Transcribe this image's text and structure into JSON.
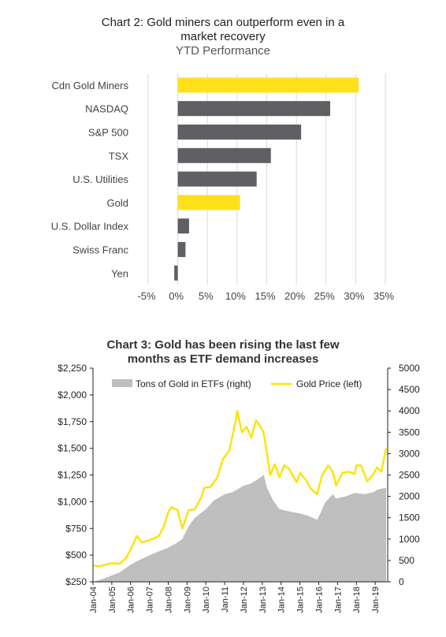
{
  "chart_data": [
    {
      "type": "bar",
      "orientation": "horizontal",
      "title": [
        "Chart 2: Gold miners can outperform even in a",
        "market recovery"
      ],
      "subtitle": "YTD Performance",
      "categories": [
        "Cdn Gold Miners",
        "NASDAQ",
        "S&P 500",
        "TSX",
        "U.S. Utilities",
        "Gold",
        "U.S. Dollar Index",
        "Swiss Franc",
        "Yen"
      ],
      "values": [
        30.5,
        25.7,
        20.8,
        15.7,
        13.3,
        10.5,
        1.9,
        1.3,
        -0.6
      ],
      "highlight": [
        true,
        false,
        false,
        false,
        false,
        true,
        false,
        false,
        false
      ],
      "xlim": [
        -5,
        35
      ],
      "xticks": [
        "-5%",
        "0%",
        "5%",
        "10%",
        "15%",
        "20%",
        "25%",
        "30%",
        "35%"
      ],
      "xtick_values": [
        -5,
        0,
        5,
        10,
        15,
        20,
        25,
        30,
        35
      ],
      "colors": {
        "highlight": "#FFE01B",
        "default": "#5F5F64"
      },
      "grid": true
    },
    {
      "type": "area",
      "title": [
        "Chart 3: Gold has been rising the last few",
        "months as ETF demand increases"
      ],
      "legend": {
        "placement": "top",
        "items": [
          "Tons of Gold in ETFs (right)",
          "Gold Price (left)"
        ]
      },
      "series": [
        {
          "name": "Gold Price (left)",
          "type": "line",
          "axis": "left",
          "color": "#FFE200",
          "x": [
            "2004-01",
            "2004-05",
            "2004-09",
            "2005-01",
            "2005-06",
            "2005-10",
            "2006-01",
            "2006-05",
            "2006-08",
            "2006-11",
            "2007-03",
            "2007-07",
            "2007-10",
            "2008-01",
            "2008-03",
            "2008-07",
            "2008-10",
            "2009-02",
            "2009-06",
            "2009-10",
            "2009-12",
            "2010-04",
            "2010-08",
            "2010-12",
            "2011-04",
            "2011-08",
            "2011-09",
            "2011-12",
            "2012-03",
            "2012-06",
            "2012-09",
            "2012-12",
            "2013-02",
            "2013-04",
            "2013-06",
            "2013-09",
            "2013-12",
            "2014-03",
            "2014-06",
            "2014-11",
            "2015-01",
            "2015-05",
            "2015-08",
            "2015-12",
            "2016-03",
            "2016-07",
            "2016-10",
            "2016-12",
            "2017-04",
            "2017-08",
            "2017-12",
            "2018-01",
            "2018-04",
            "2018-08",
            "2018-12",
            "2019-02",
            "2019-05",
            "2019-08"
          ],
          "values": [
            405,
            395,
            410,
            425,
            420,
            470,
            550,
            680,
            620,
            630,
            650,
            680,
            760,
            900,
            950,
            920,
            750,
            920,
            930,
            1040,
            1130,
            1140,
            1220,
            1400,
            1480,
            1750,
            1850,
            1650,
            1700,
            1600,
            1760,
            1700,
            1640,
            1450,
            1250,
            1350,
            1230,
            1340,
            1310,
            1180,
            1270,
            1200,
            1120,
            1070,
            1240,
            1340,
            1280,
            1150,
            1270,
            1280,
            1260,
            1340,
            1340,
            1190,
            1260,
            1320,
            1280,
            1500
          ]
        },
        {
          "name": "Tons of Gold in ETFs (right)",
          "type": "area",
          "axis": "right",
          "color": "#BFBFBF",
          "x": [
            "2004-01",
            "2004-06",
            "2005-01",
            "2005-06",
            "2006-01",
            "2006-06",
            "2007-01",
            "2007-06",
            "2008-01",
            "2008-06",
            "2008-10",
            "2009-02",
            "2009-06",
            "2010-01",
            "2010-06",
            "2011-01",
            "2011-06",
            "2012-01",
            "2012-06",
            "2012-12",
            "2013-02",
            "2013-04",
            "2013-08",
            "2013-12",
            "2014-06",
            "2015-01",
            "2015-06",
            "2015-12",
            "2016-02",
            "2016-05",
            "2016-10",
            "2016-12",
            "2017-06",
            "2017-12",
            "2018-06",
            "2018-12",
            "2019-02",
            "2019-05",
            "2019-08"
          ],
          "values": [
            0,
            50,
            150,
            220,
            400,
            500,
            620,
            700,
            800,
            900,
            1000,
            1300,
            1500,
            1700,
            1900,
            2050,
            2100,
            2250,
            2300,
            2450,
            2500,
            2200,
            1900,
            1700,
            1650,
            1600,
            1550,
            1450,
            1600,
            1850,
            2050,
            1950,
            2000,
            2080,
            2050,
            2100,
            2150,
            2180,
            2200
          ]
        }
      ],
      "xticks": [
        "Jan-04",
        "Jan-05",
        "Jan-06",
        "Jan-07",
        "Jan-08",
        "Jan-09",
        "Jan-10",
        "Jan-11",
        "Jan-12",
        "Jan-13",
        "Jan-14",
        "Jan-15",
        "Jan-16",
        "Jan-17",
        "Jan-18",
        "Jan-19"
      ],
      "xlim": [
        "2004-01",
        "2019-09"
      ],
      "ylim_left": [
        250,
        2250
      ],
      "yticks_left": [
        "$250",
        "$500",
        "$750",
        "$1,000",
        "$1,250",
        "$1,500",
        "$1,750",
        "$2,000",
        "$2,250"
      ],
      "ylim_right": [
        0,
        5000
      ],
      "yticks_right": [
        "0",
        "500",
        "1000",
        "1500",
        "2000",
        "2500",
        "3000",
        "3500",
        "4000",
        "4500",
        "5000"
      ],
      "grid": false
    }
  ]
}
